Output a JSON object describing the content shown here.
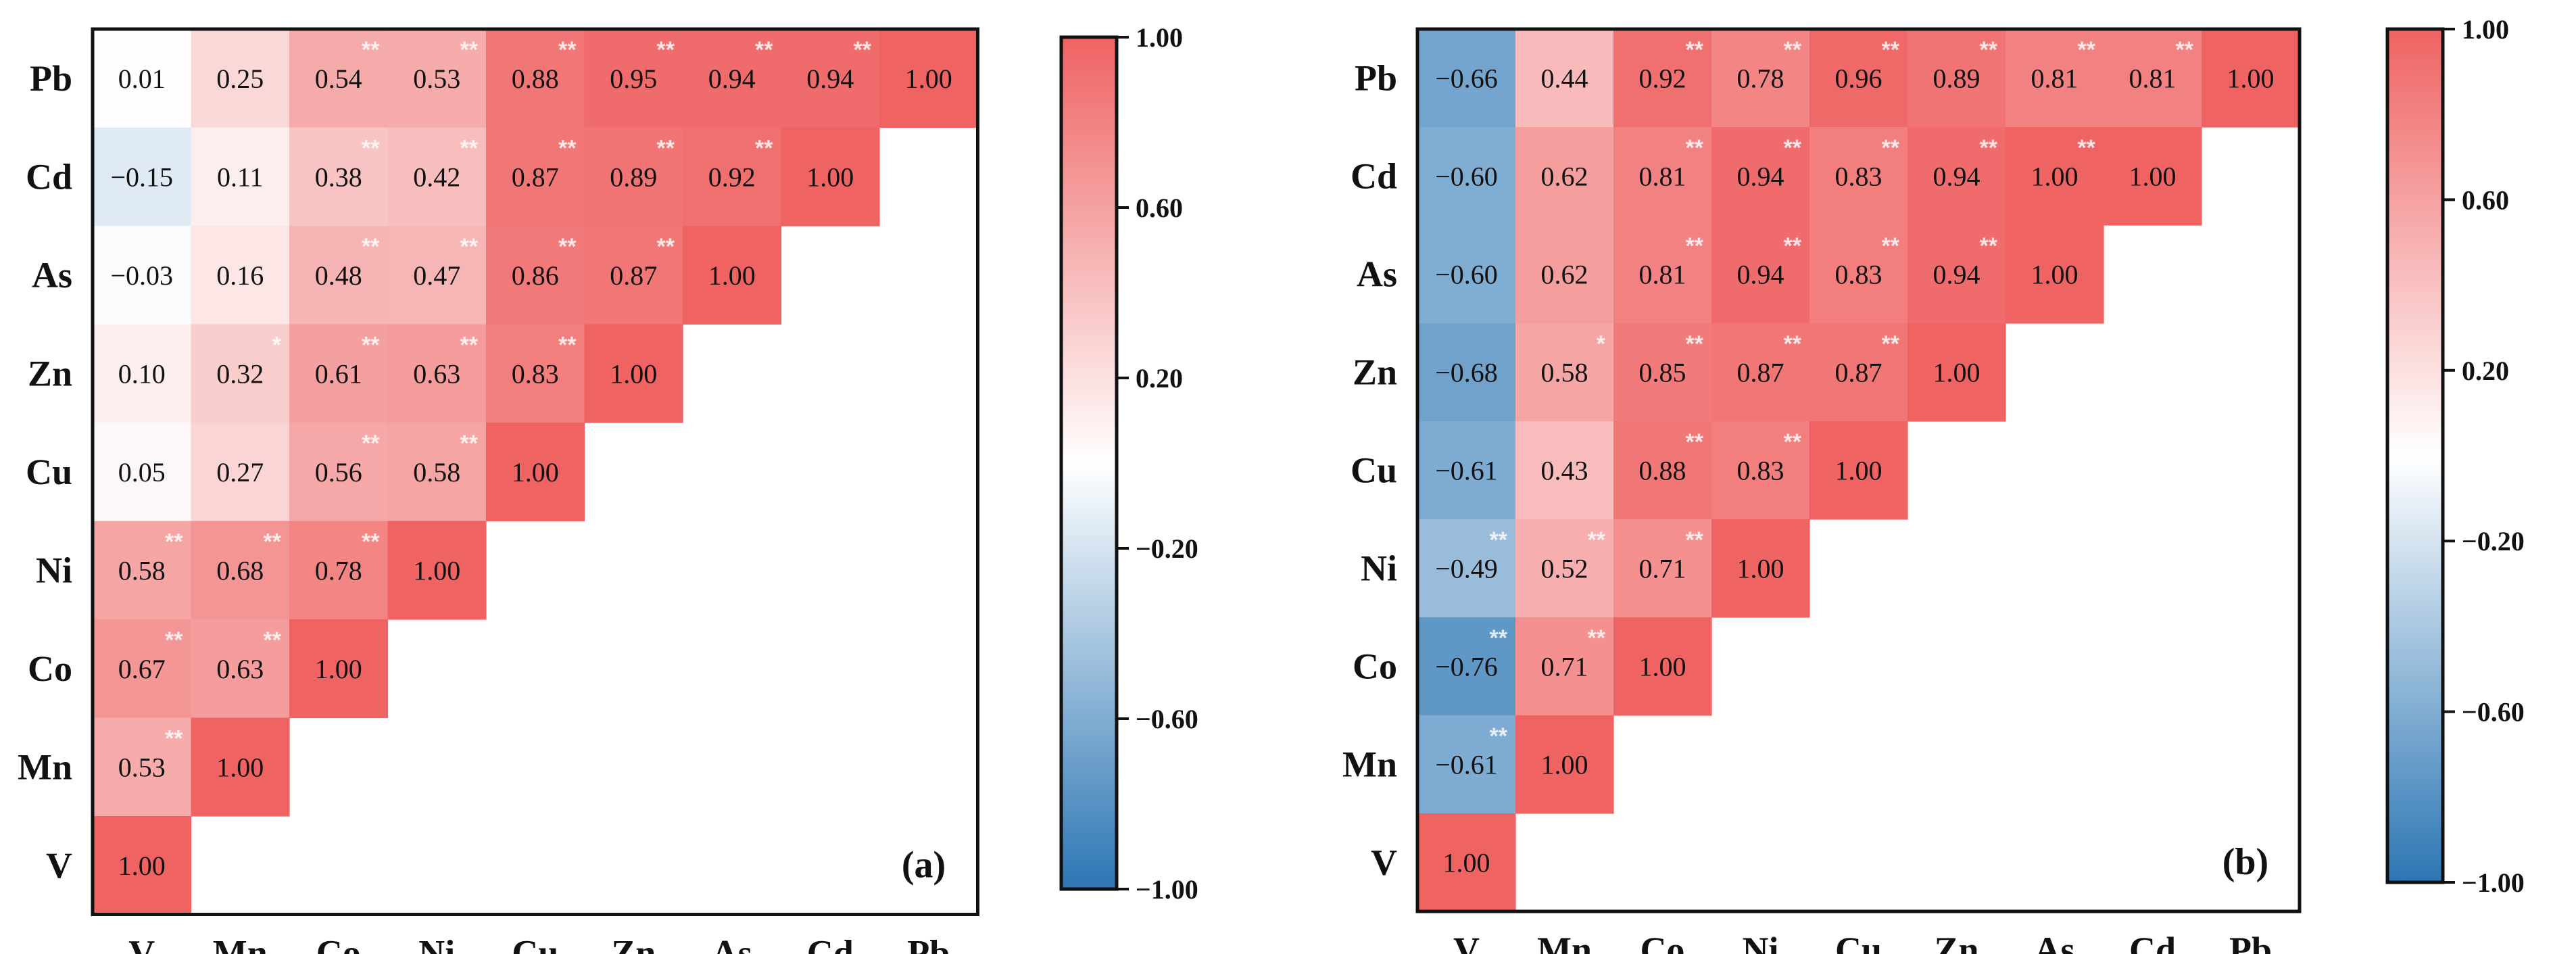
{
  "colors": {
    "negative": "#2c76b4",
    "neutral": "#ffffff",
    "positive": "#ef6363",
    "frame": "#111111",
    "significance_marker": "#ffffff"
  },
  "colorbar_ticks": [
    "1.00",
    "0.60",
    "0.20",
    "−0.20",
    "−0.60",
    "−1.00"
  ],
  "chart_data": [
    {
      "type": "heatmap",
      "panel_label": "(a)",
      "variables": [
        "V",
        "Mn",
        "Co",
        "Ni",
        "Cu",
        "Zn",
        "As",
        "Cd",
        "Pb"
      ],
      "rows": [
        "Pb",
        "Cd",
        "As",
        "Zn",
        "Cu",
        "Ni",
        "Co",
        "Mn",
        "V"
      ],
      "matrix": [
        [
          0.01,
          0.25,
          0.54,
          0.53,
          0.88,
          0.95,
          0.94,
          0.94,
          1.0
        ],
        [
          -0.15,
          0.11,
          0.38,
          0.42,
          0.87,
          0.89,
          0.92,
          1.0
        ],
        [
          -0.03,
          0.16,
          0.48,
          0.47,
          0.86,
          0.87,
          1.0
        ],
        [
          0.1,
          0.32,
          0.61,
          0.63,
          0.83,
          1.0
        ],
        [
          0.05,
          0.27,
          0.56,
          0.58,
          1.0
        ],
        [
          0.58,
          0.68,
          0.78,
          1.0
        ],
        [
          0.67,
          0.63,
          1.0
        ],
        [
          0.53,
          1.0
        ],
        [
          1.0
        ]
      ],
      "significance": [
        [
          "",
          "",
          "**",
          "**",
          "**",
          "**",
          "**",
          "**",
          ""
        ],
        [
          "",
          "",
          "**",
          "**",
          "**",
          "**",
          "**",
          ""
        ],
        [
          "",
          "",
          "**",
          "**",
          "**",
          "**",
          ""
        ],
        [
          "",
          "*",
          "**",
          "**",
          "**",
          ""
        ],
        [
          "",
          "",
          "**",
          "**",
          ""
        ],
        [
          "**",
          "**",
          "**",
          ""
        ],
        [
          "**",
          "**",
          ""
        ],
        [
          "**",
          ""
        ],
        [
          ""
        ]
      ],
      "colorbar": {
        "min": -1.0,
        "max": 1.0
      }
    },
    {
      "type": "heatmap",
      "panel_label": "(b)",
      "variables": [
        "V",
        "Mn",
        "Co",
        "Ni",
        "Cu",
        "Zn",
        "As",
        "Cd",
        "Pb"
      ],
      "rows": [
        "Pb",
        "Cd",
        "As",
        "Zn",
        "Cu",
        "Ni",
        "Co",
        "Mn",
        "V"
      ],
      "matrix": [
        [
          -0.66,
          0.44,
          0.92,
          0.78,
          0.96,
          0.89,
          0.81,
          0.81,
          1.0
        ],
        [
          -0.6,
          0.62,
          0.81,
          0.94,
          0.83,
          0.94,
          1.0,
          1.0
        ],
        [
          -0.6,
          0.62,
          0.81,
          0.94,
          0.83,
          0.94,
          1.0
        ],
        [
          -0.68,
          0.58,
          0.85,
          0.87,
          0.87,
          1.0
        ],
        [
          -0.61,
          0.43,
          0.88,
          0.83,
          1.0
        ],
        [
          -0.49,
          0.52,
          0.71,
          1.0
        ],
        [
          -0.76,
          0.71,
          1.0
        ],
        [
          -0.61,
          1.0
        ],
        [
          1.0
        ]
      ],
      "significance": [
        [
          "",
          "",
          "**",
          "**",
          "**",
          "**",
          "**",
          "**",
          ""
        ],
        [
          "",
          "",
          "**",
          "**",
          "**",
          "**",
          "**",
          ""
        ],
        [
          "",
          "",
          "**",
          "**",
          "**",
          "**",
          ""
        ],
        [
          "",
          "*",
          "**",
          "**",
          "**",
          ""
        ],
        [
          "",
          "",
          "**",
          "**",
          ""
        ],
        [
          "**",
          "**",
          "**",
          ""
        ],
        [
          "**",
          "**",
          ""
        ],
        [
          "**",
          ""
        ],
        [
          ""
        ]
      ],
      "colorbar": {
        "min": -1.0,
        "max": 1.0
      }
    }
  ]
}
